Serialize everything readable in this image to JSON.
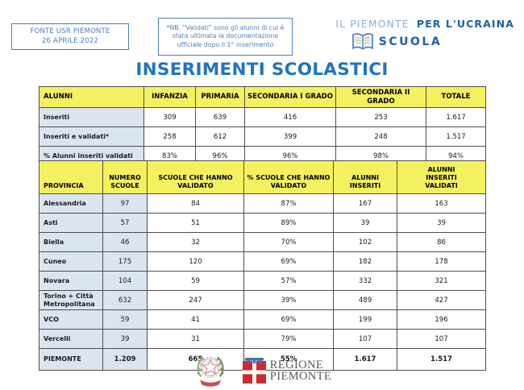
{
  "header": {
    "fonte_box": {
      "line1": "FONTE USR PIEMONTE",
      "line2": "26 APRILE 2022"
    },
    "note_box": {
      "text": "*NB. \"Validati\" sono gli alunni di cui è stata ultimata la documentazione ufficiale dopo il 1° inserimento"
    },
    "brand": {
      "title_light": "IL PIEMONTE",
      "title_bold": "PER L'UCRAINA",
      "subtitle": "SCUOLA",
      "icon": "open-book-icon"
    }
  },
  "title": "INSERIMENTI SCOLASTICI",
  "tables": {
    "alunni": {
      "headers": [
        [
          "ALUNNI"
        ],
        [
          "INFANZIA"
        ],
        [
          "PRIMARIA"
        ],
        [
          "SECONDARIA I GRADO"
        ],
        [
          "SECONDARIA II GRADO"
        ],
        [
          "TOTALE"
        ]
      ],
      "rows": [
        {
          "label": "Inseriti",
          "values": [
            "309",
            "639",
            "416",
            "253",
            "1.617"
          ]
        },
        {
          "label": "Inseriti e validati*",
          "values": [
            "258",
            "612",
            "399",
            "248",
            "1.517"
          ]
        },
        {
          "label": "% Alunni inseriti validati",
          "values": [
            "83%",
            "96%",
            "96%",
            "98%",
            "94%"
          ]
        }
      ]
    },
    "province": {
      "headers": [
        [
          "PROVINCIA"
        ],
        [
          "NUMERO",
          "SCUOLE"
        ],
        [
          "SCUOLE CHE HANNO",
          "VALIDATO"
        ],
        [
          "% SCUOLE CHE HANNO",
          "VALIDATO"
        ],
        [
          "ALUNNI",
          "INSERITI"
        ],
        [
          "ALUNNI",
          "INSERITI",
          "VALIDATI"
        ]
      ],
      "rows": [
        {
          "label": "Alessandria",
          "values": [
            "97",
            "84",
            "87%",
            "167",
            "163"
          ]
        },
        {
          "label": "Asti",
          "values": [
            "57",
            "51",
            "89%",
            "39",
            "39"
          ]
        },
        {
          "label": "Biella",
          "values": [
            "46",
            "32",
            "70%",
            "102",
            "86"
          ]
        },
        {
          "label": "Cuneo",
          "values": [
            "175",
            "120",
            "69%",
            "182",
            "178"
          ]
        },
        {
          "label": "Novara",
          "values": [
            "104",
            "59",
            "57%",
            "332",
            "321"
          ]
        },
        {
          "label": "Torino + Città Metropolitana",
          "values": [
            "632",
            "247",
            "39%",
            "489",
            "427"
          ]
        },
        {
          "label": "VCO",
          "values": [
            "59",
            "41",
            "69%",
            "199",
            "196"
          ]
        },
        {
          "label": "Vercelli",
          "values": [
            "39",
            "31",
            "79%",
            "107",
            "107"
          ]
        },
        {
          "label": "PIEMONTE",
          "values": [
            "1.209",
            "665",
            "55%",
            "1.617",
            "1.517"
          ],
          "total": true
        }
      ]
    }
  },
  "footer": {
    "regione_line1": "REGIONE",
    "regione_line2": "PIEMONTE"
  },
  "colors": {
    "accent_blue": "#2173be",
    "brand_blue_dark": "#1d5fa8",
    "brand_blue_light": "#8aaed6",
    "box_blue": "#4a7ec0",
    "table_header_yellow": "#f4f160",
    "table_shaded_blue": "#dbe5f1",
    "table_border": "#4d4d4d",
    "regione_red": "#cc2b31",
    "regione_text_gray": "#58595b"
  }
}
